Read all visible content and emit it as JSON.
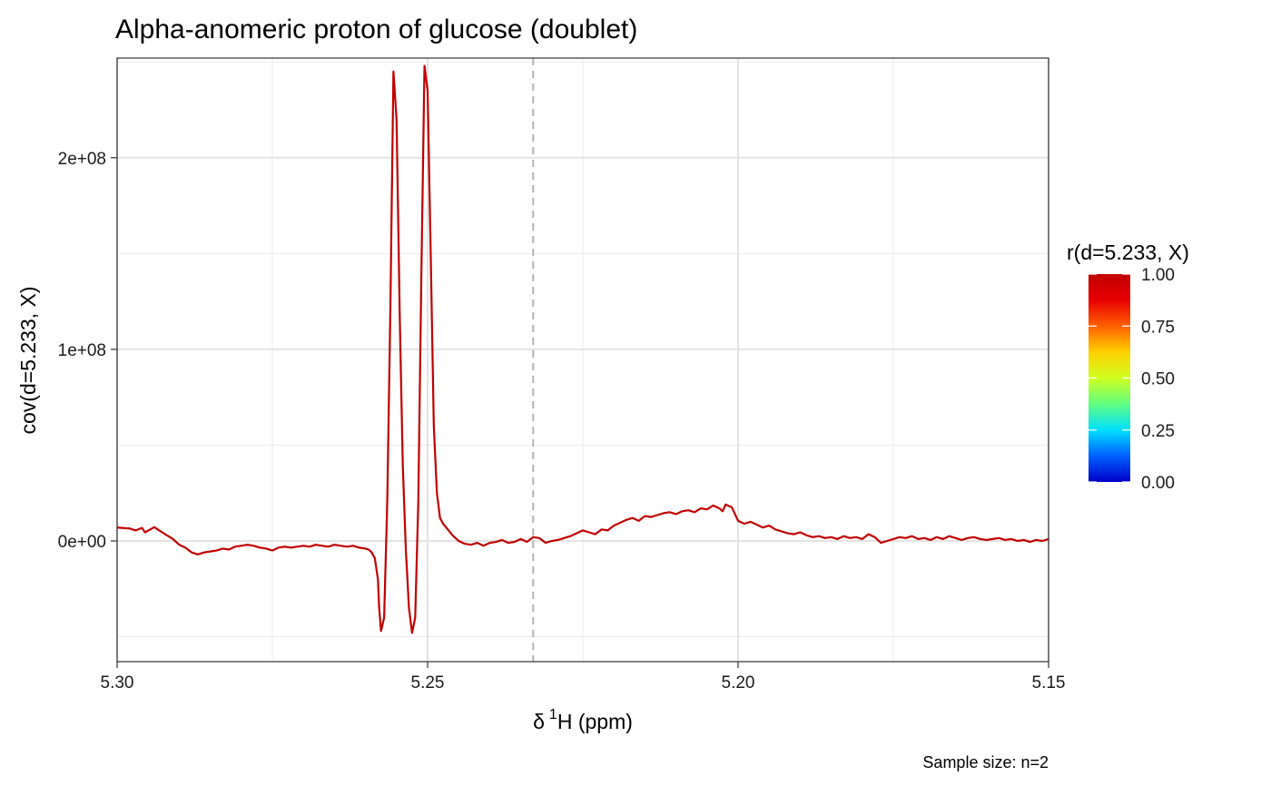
{
  "chart_data": {
    "type": "line",
    "title": "Alpha-anomeric proton of glucose (doublet)",
    "xlabel": "δ ¹H (ppm)",
    "xlabel_parts": {
      "delta": "δ",
      "sup": "1",
      "rest": "H (ppm)"
    },
    "ylabel": "cov(d=5.233, X)",
    "caption": "Sample size: n=2",
    "x_reversed": true,
    "xlim": [
      5.3,
      5.15
    ],
    "ylim": [
      -63000000,
      252000000
    ],
    "x_ticks": [
      {
        "value": 5.3,
        "label": "5.30"
      },
      {
        "value": 5.25,
        "label": "5.25"
      },
      {
        "value": 5.2,
        "label": "5.20"
      },
      {
        "value": 5.15,
        "label": "5.15"
      }
    ],
    "x_minor_ticks": [
      5.275,
      5.225,
      5.175
    ],
    "y_ticks": [
      {
        "value": 0,
        "label": "0e+00"
      },
      {
        "value": 100000000,
        "label": "1e+08"
      },
      {
        "value": 200000000,
        "label": "2e+08"
      }
    ],
    "y_minor_ticks": [
      -50000000,
      50000000,
      150000000,
      250000000
    ],
    "reference_line": {
      "x": 5.233,
      "style": "dashed",
      "color": "#b3b3b3"
    },
    "grid": true,
    "line_color": "#c00000",
    "series": [
      {
        "x": [
          5.3,
          5.298,
          5.297,
          5.296,
          5.2955,
          5.294,
          5.293,
          5.292,
          5.291,
          5.29,
          5.289,
          5.288,
          5.287,
          5.286,
          5.285,
          5.284,
          5.283,
          5.282,
          5.281,
          5.28,
          5.279,
          5.278,
          5.277,
          5.276,
          5.275,
          5.274,
          5.273,
          5.272,
          5.271,
          5.27,
          5.269,
          5.268,
          5.267,
          5.266,
          5.265,
          5.264,
          5.263,
          5.262,
          5.261,
          5.26,
          5.2595,
          5.259,
          5.2585,
          5.258,
          5.2578,
          5.2575,
          5.257,
          5.2565,
          5.256,
          5.2555,
          5.255,
          5.2545,
          5.254,
          5.2535,
          5.253,
          5.2525,
          5.252,
          5.2515,
          5.251,
          5.2505,
          5.25,
          5.2495,
          5.249,
          5.2485,
          5.248,
          5.2475,
          5.247,
          5.246,
          5.245,
          5.244,
          5.243,
          5.242,
          5.241,
          5.24,
          5.239,
          5.238,
          5.237,
          5.236,
          5.235,
          5.234,
          5.233,
          5.232,
          5.231,
          5.23,
          5.229,
          5.228,
          5.227,
          5.226,
          5.225,
          5.224,
          5.223,
          5.222,
          5.221,
          5.22,
          5.219,
          5.218,
          5.217,
          5.216,
          5.215,
          5.214,
          5.213,
          5.212,
          5.211,
          5.21,
          5.209,
          5.208,
          5.207,
          5.206,
          5.205,
          5.204,
          5.203,
          5.2025,
          5.202,
          5.201,
          5.2005,
          5.2,
          5.199,
          5.198,
          5.197,
          5.196,
          5.195,
          5.194,
          5.193,
          5.192,
          5.191,
          5.19,
          5.189,
          5.188,
          5.187,
          5.186,
          5.185,
          5.184,
          5.183,
          5.182,
          5.181,
          5.18,
          5.179,
          5.178,
          5.177,
          5.176,
          5.175,
          5.174,
          5.173,
          5.172,
          5.171,
          5.17,
          5.169,
          5.168,
          5.167,
          5.166,
          5.165,
          5.164,
          5.163,
          5.162,
          5.161,
          5.16,
          5.159,
          5.158,
          5.157,
          5.156,
          5.155,
          5.154,
          5.153,
          5.152,
          5.151,
          5.15
        ],
        "y": [
          7000000,
          6500000,
          5500000,
          6800000,
          4500000,
          7200000,
          5000000,
          3000000,
          1000000,
          -2000000,
          -3500000,
          -6000000,
          -7000000,
          -6000000,
          -5500000,
          -5000000,
          -4000000,
          -4500000,
          -3000000,
          -2500000,
          -2000000,
          -2500000,
          -3500000,
          -4000000,
          -5000000,
          -3500000,
          -3000000,
          -3500000,
          -3000000,
          -2500000,
          -3000000,
          -2000000,
          -2500000,
          -3000000,
          -2000000,
          -2500000,
          -3000000,
          -2500000,
          -3500000,
          -4000000,
          -4500000,
          -6000000,
          -9000000,
          -20000000,
          -35000000,
          -47000000,
          -40000000,
          20000000,
          120000000,
          245000000,
          220000000,
          120000000,
          40000000,
          -5000000,
          -35000000,
          -48000000,
          -40000000,
          20000000,
          140000000,
          248000000,
          235000000,
          150000000,
          60000000,
          25000000,
          12000000,
          9000000,
          7000000,
          3000000,
          0,
          -1500000,
          -2000000,
          -1000000,
          -2500000,
          -1000000,
          -500000,
          500000,
          -1000000,
          -500000,
          1000000,
          -500000,
          2000000,
          1500000,
          -1000000,
          0,
          500000,
          1500000,
          2500000,
          4000000,
          5500000,
          4500000,
          3500000,
          6000000,
          5500000,
          8000000,
          9500000,
          11000000,
          12000000,
          10500000,
          13000000,
          12500000,
          13500000,
          14500000,
          15000000,
          14000000,
          15500000,
          16000000,
          15000000,
          17000000,
          16500000,
          18500000,
          17000000,
          15500000,
          19000000,
          17500000,
          14000000,
          10500000,
          9000000,
          10000000,
          8500000,
          7000000,
          8000000,
          6000000,
          5000000,
          4000000,
          3500000,
          4500000,
          3000000,
          2000000,
          2500000,
          1500000,
          2000000,
          1000000,
          2500000,
          1500000,
          2000000,
          1000000,
          3500000,
          2000000,
          -1000000,
          0,
          1000000,
          2000000,
          1500000,
          2500000,
          1000000,
          1500000,
          500000,
          2000000,
          1000000,
          2500000,
          1500000,
          500000,
          1500000,
          2000000,
          1000000,
          500000,
          1000000,
          1500000,
          500000,
          1000000,
          0,
          500000,
          -500000,
          500000,
          0,
          1000000
        ]
      }
    ],
    "legend": {
      "title": "r(d=5.233, X)",
      "placement": "right",
      "type": "colorbar",
      "range": [
        0,
        1
      ],
      "ticks": [
        {
          "value": 1.0,
          "label": "1.00"
        },
        {
          "value": 0.75,
          "label": "0.75"
        },
        {
          "value": 0.5,
          "label": "0.50"
        },
        {
          "value": 0.25,
          "label": "0.25"
        },
        {
          "value": 0.0,
          "label": "0.00"
        }
      ],
      "colors": [
        "#0000c8",
        "#0060ff",
        "#00e0ff",
        "#60ff80",
        "#d0ff20",
        "#ffd000",
        "#ff6000",
        "#e80000",
        "#c00000"
      ]
    }
  }
}
